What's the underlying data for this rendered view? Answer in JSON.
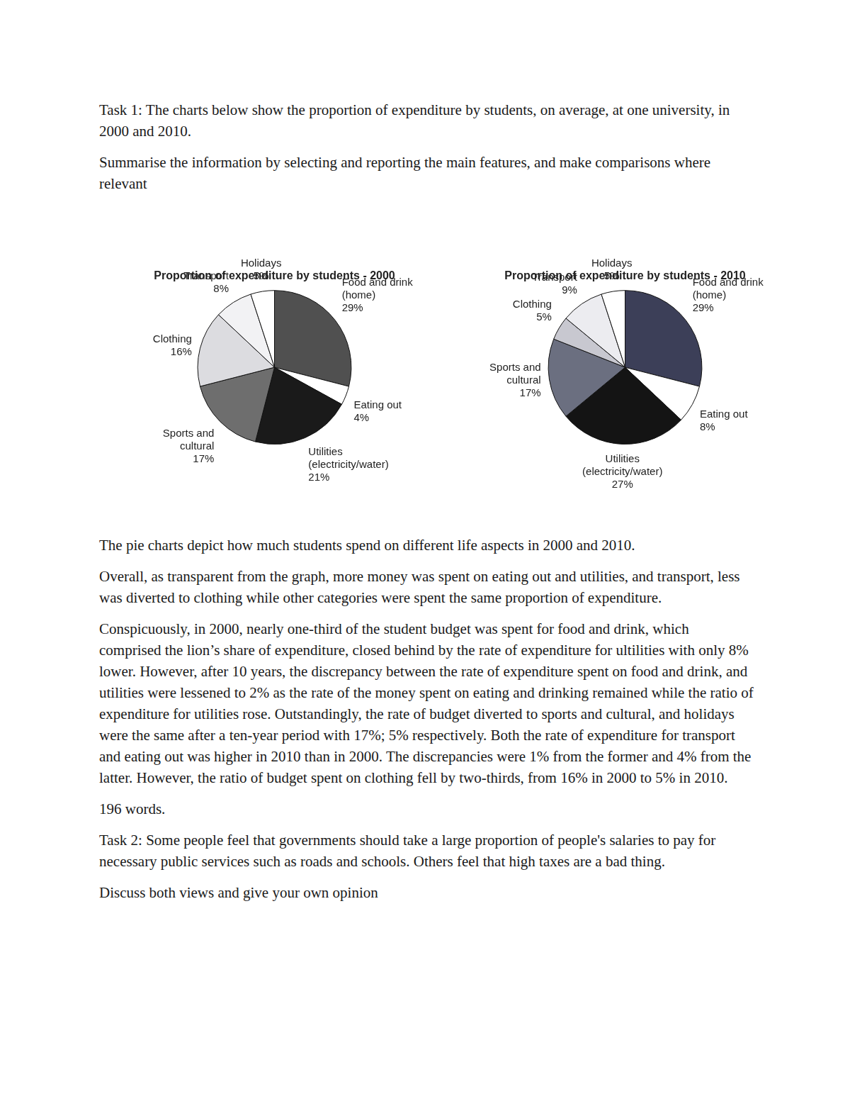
{
  "task1": {
    "prompt": "Task 1: The charts below show the proportion of expenditure by students, on average, at one university, in 2000 and 2010.",
    "instruction": "Summarise the information by selecting and reporting the main features, and make comparisons where relevant"
  },
  "chart_data": [
    {
      "type": "pie",
      "title": "Proportion of expenditure by students - 2000",
      "categories": [
        "Food and drink (home)",
        "Eating out",
        "Utilities (electricity/water)",
        "Sports and cultural",
        "Clothing",
        "Transport",
        "Holidays"
      ],
      "values": [
        29,
        4,
        21,
        17,
        16,
        8,
        5
      ],
      "value_labels": [
        "29%",
        "4%",
        "21%",
        "17%",
        "16%",
        "8%",
        "5%"
      ],
      "colors": [
        "#505050",
        "#ffffff",
        "#1a1a1a",
        "#6e6e6e",
        "#dcdce0",
        "#f2f2f4",
        "#ffffff"
      ],
      "data_labels": true
    },
    {
      "type": "pie",
      "title": "Proportion of expenditure by students - 2010",
      "categories": [
        "Food and drink (home)",
        "Eating out",
        "Utilities (electricity/water)",
        "Sports and cultural",
        "Clothing",
        "Transport",
        "Holidays"
      ],
      "values": [
        29,
        8,
        27,
        17,
        5,
        9,
        5
      ],
      "value_labels": [
        "29%",
        "8%",
        "27%",
        "17%",
        "5%",
        "9%",
        "5%"
      ],
      "colors": [
        "#3c3f58",
        "#ffffff",
        "#141414",
        "#6b6f80",
        "#c8c8d0",
        "#ececf0",
        "#ffffff"
      ],
      "data_labels": true
    }
  ],
  "essay": {
    "paragraphs": [
      "The pie charts depict how much students spend on different life aspects in 2000 and 2010.",
      "Overall, as transparent from the graph, more money was spent on eating out and utilities, and transport, less was diverted to clothing while other categories were spent the same proportion of expenditure.",
      "Conspicuously, in 2000, nearly one-third of the student budget was spent for food and drink, which comprised the lion’s share of expenditure, closed behind by the rate of expenditure for ultilities with only 8% lower. However, after 10 years, the discrepancy between the rate of expenditure spent on food and drink, and utilities were lessened to 2% as the rate of the money spent on eating and drinking remained while the ratio of expenditure for utilities rose. Outstandingly, the rate of budget diverted to sports and cultural, and holidays were the same after a ten-year period with 17%; 5% respectively. Both the rate of expenditure for transport and eating out was higher in 2010 than in 2000. The discrepancies were 1% from the former and 4% from the latter. However, the ratio of budget spent on clothing fell by two-thirds, from 16% in 2000 to 5% in 2010."
    ],
    "word_count": "196 words."
  },
  "task2": {
    "prompt": "Task 2: Some people feel that governments should take a large proportion of people's salaries to pay for necessary public services such as roads and schools. Others feel that high taxes are a bad thing.",
    "instruction": "Discuss both views and give your own opinion"
  }
}
